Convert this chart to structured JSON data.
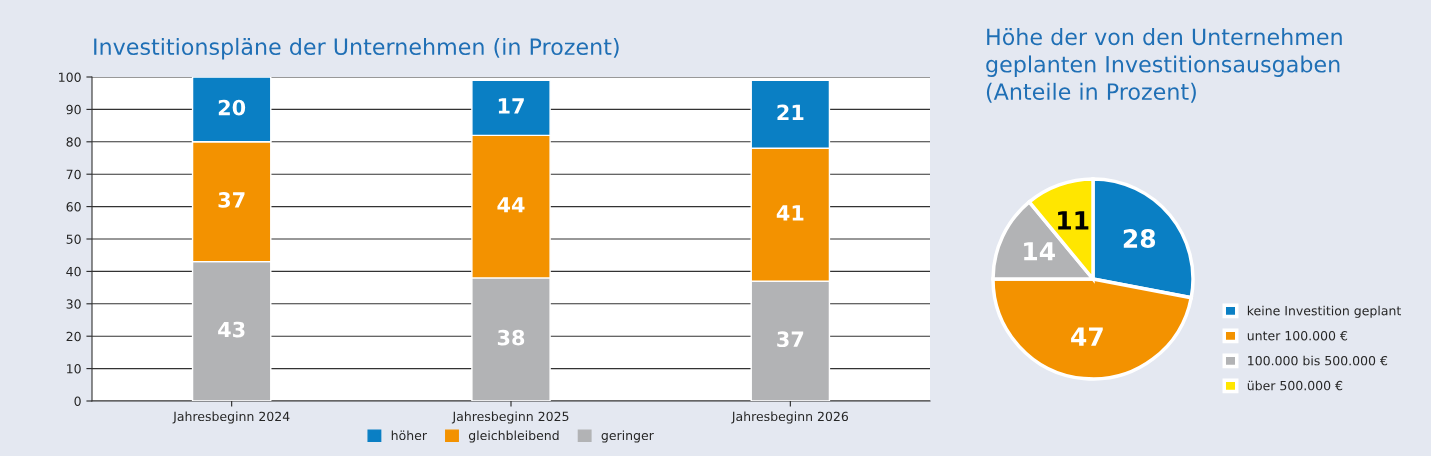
{
  "chart_data": [
    {
      "type": "bar",
      "title": "Investitionspläne der Unternehmen (in Prozent)",
      "categories": [
        "Jahresbeginn 2024",
        "Jahresbeginn 2025",
        "Jahresbeginn 2026"
      ],
      "stacked": true,
      "series": [
        {
          "name": "geringer",
          "color": "#b2b3b5",
          "values": [
            43,
            38,
            37
          ]
        },
        {
          "name": "gleichbleibend",
          "color": "#f39200",
          "values": [
            37,
            44,
            41
          ]
        },
        {
          "name": "höher",
          "color": "#0a7fc4",
          "values": [
            20,
            17,
            21
          ]
        }
      ],
      "ylim": [
        0,
        100
      ],
      "yticks": [
        0,
        10,
        20,
        30,
        40,
        50,
        60,
        70,
        80,
        90,
        100
      ],
      "grid": "y",
      "legend": "bottom",
      "data_labels": true
    },
    {
      "type": "pie",
      "title": "Höhe der von den Unternehmen\ngeplanten Investitionsausgaben\n(Anteile in Prozent)",
      "categories": [
        "keine Investition geplant",
        "unter 100.000 €",
        "100.000 bis 500.000 €",
        "über 500.000 €"
      ],
      "values": [
        28,
        47,
        14,
        11
      ],
      "colors": [
        "#0a7fc4",
        "#f39200",
        "#b2b3b5",
        "#ffe600"
      ],
      "legend": "bottom right",
      "data_labels": true
    }
  ]
}
